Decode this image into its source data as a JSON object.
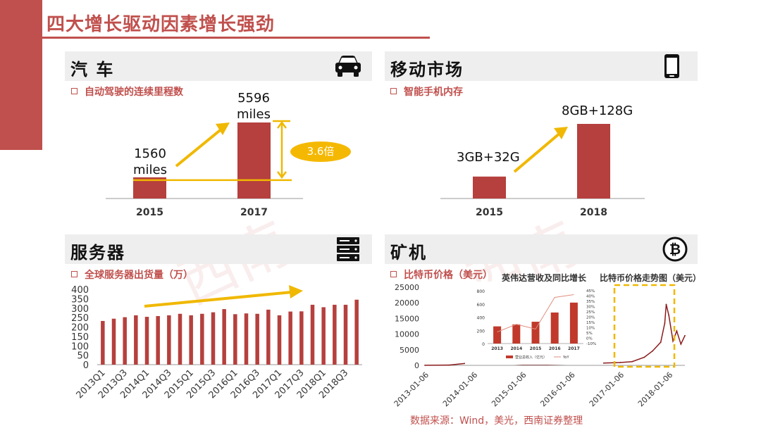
{
  "title": "四大增长驱动因素增长强劲",
  "colors": {
    "accent": "#c0504d",
    "bar": "#b5403d",
    "arrow": "#f0b800",
    "header_bg": "#eeeeee"
  },
  "panels": {
    "car": {
      "title": "汽 车",
      "icon": "car-icon",
      "bullet": "自动驾驶的连续里程数",
      "multiplier": "3.6倍",
      "bar_labels": [
        [
          "1560",
          "miles"
        ],
        [
          "5596",
          "miles"
        ]
      ]
    },
    "mobile": {
      "title": "移动市场",
      "icon": "smartphone-icon",
      "bullet": "智能手机内存",
      "bar_labels": [
        "3GB+32G",
        "8GB+128G"
      ]
    },
    "server": {
      "title": "服务器",
      "icon": "server-icon",
      "bullet": "全球服务器出货量（万）"
    },
    "miner": {
      "title": "矿机",
      "icon": "bitcoin-icon",
      "bullet": "比特币价格（美元）",
      "inset_title": "英伟达营收及同比增长",
      "trend_title": "比特币价格走势图（美元）"
    }
  },
  "source": "数据来源：Wind，美光，西南证券整理",
  "chart_data": [
    {
      "type": "bar",
      "title": "自动驾驶的连续里程数",
      "categories": [
        "2015",
        "2017"
      ],
      "values": [
        1560,
        5596
      ],
      "unit": "miles"
    },
    {
      "type": "bar",
      "title": "智能手机内存",
      "categories": [
        "2015",
        "2018"
      ],
      "values": [
        40,
        136
      ],
      "value_labels": [
        "3GB+32G",
        "8GB+128G"
      ]
    },
    {
      "type": "bar",
      "title": "全球服务器出货量（万）",
      "categories": [
        "2013Q1",
        "2013Q2",
        "2013Q3",
        "2013Q4",
        "2014Q1",
        "2014Q2",
        "2014Q3",
        "2014Q4",
        "2015Q1",
        "2015Q2",
        "2015Q3",
        "2015Q4",
        "2016Q1",
        "2016Q2",
        "2016Q3",
        "2016Q4",
        "2017Q1",
        "2017Q2",
        "2017Q3",
        "2017Q4",
        "2018Q1",
        "2018Q2",
        "2018Q3",
        "2018Q4"
      ],
      "tick_labels": [
        "2013Q1",
        "2013Q3",
        "2014Q1",
        "2014Q3",
        "2015Q1",
        "2015Q3",
        "2016Q1",
        "2016Q3",
        "2017Q1",
        "2017Q3",
        "2018Q1",
        "2018Q3"
      ],
      "values": [
        232,
        244,
        252,
        262,
        254,
        258,
        262,
        270,
        262,
        270,
        278,
        295,
        268,
        272,
        270,
        292,
        262,
        282,
        283,
        318,
        305,
        318,
        318,
        345
      ],
      "ylim": [
        0,
        400
      ],
      "yticks": [
        0,
        50,
        100,
        150,
        200,
        250,
        300,
        350,
        400
      ]
    },
    {
      "type": "line",
      "title": "比特币价格（美元）",
      "x": [
        "2013-01-06",
        "2013-07-06",
        "2014-01-06",
        "2014-07-06",
        "2015-01-06",
        "2015-07-06",
        "2016-01-06",
        "2016-07-06",
        "2017-01-06",
        "2017-04-06",
        "2017-07-06",
        "2017-09-06",
        "2017-11-06",
        "2017-12-06",
        "2017-12-17",
        "2018-01-06",
        "2018-02-06",
        "2018-03-06",
        "2018-04-06",
        "2018-05-06"
      ],
      "values": [
        13,
        90,
        900,
        620,
        290,
        270,
        430,
        650,
        900,
        1200,
        2600,
        4600,
        7400,
        13500,
        19500,
        16000,
        7800,
        11000,
        6800,
        9500
      ],
      "x_tick_labels": [
        "2013-01-06",
        "2014-01-06",
        "2015-01-06",
        "2016-01-06",
        "2017-01-06",
        "2018-01-06"
      ],
      "ylim": [
        0,
        25000
      ],
      "yticks": [
        0,
        5000,
        10000,
        15000,
        20000,
        25000
      ]
    },
    {
      "type": "bar",
      "title": "英伟达营收及同比增长",
      "categories": [
        "2013",
        "2014",
        "2015",
        "2016",
        "2017"
      ],
      "series": [
        {
          "name": "营业总收入（亿元）",
          "values": [
            260,
            290,
            330,
            470,
            620
          ]
        },
        {
          "name": "YoY",
          "values": [
            0.02,
            0.1,
            0.05,
            0.38,
            0.41
          ]
        }
      ],
      "ylim": [
        0,
        800
      ],
      "yticks": [
        0,
        200,
        400,
        600,
        800
      ],
      "y2ticks": [
        "-10%",
        "0%",
        "5%",
        "10%",
        "15%",
        "20%",
        "25%",
        "30%",
        "35%",
        "40%",
        "45%"
      ]
    }
  ]
}
